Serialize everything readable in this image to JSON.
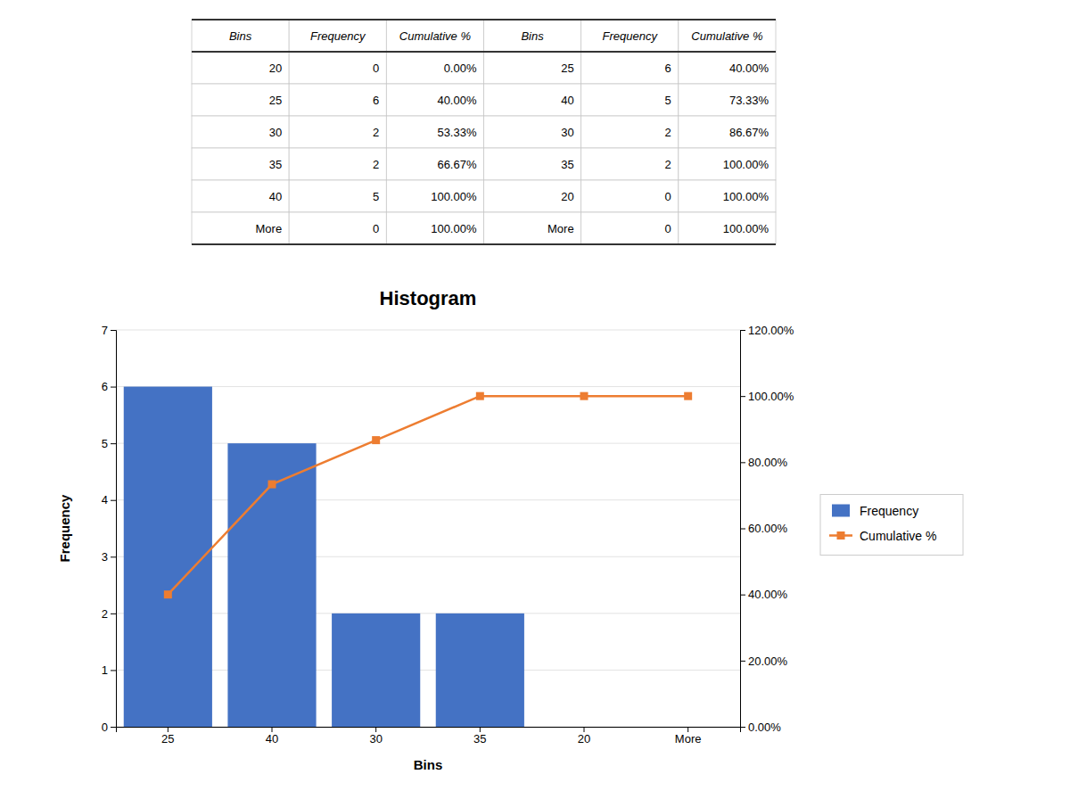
{
  "chart_data": [
    {
      "type": "table",
      "columns": [
        "Bins",
        "Frequency",
        "Cumulative %",
        "Bins",
        "Frequency",
        "Cumulative %"
      ],
      "rows": [
        [
          "20",
          "0",
          "0.00%",
          "25",
          "6",
          "40.00%"
        ],
        [
          "25",
          "6",
          "40.00%",
          "40",
          "5",
          "73.33%"
        ],
        [
          "30",
          "2",
          "53.33%",
          "30",
          "2",
          "86.67%"
        ],
        [
          "35",
          "2",
          "66.67%",
          "35",
          "2",
          "100.00%"
        ],
        [
          "40",
          "5",
          "100.00%",
          "20",
          "0",
          "100.00%"
        ],
        [
          "More",
          "0",
          "100.00%",
          "More",
          "0",
          "100.00%"
        ]
      ]
    },
    {
      "type": "bar",
      "title": "Histogram",
      "xlabel": "Bins",
      "ylabel": "Frequency",
      "categories": [
        "25",
        "40",
        "30",
        "35",
        "20",
        "More"
      ],
      "ylim": [
        0,
        7
      ],
      "yticks": [
        0,
        1,
        2,
        3,
        4,
        5,
        6,
        7
      ],
      "y2lim": [
        0,
        120.0
      ],
      "y2ticks": [
        {
          "value": 0.0,
          "label": "0.00%"
        },
        {
          "value": 20.0,
          "label": "20.00%"
        },
        {
          "value": 40.0,
          "label": "40.00%"
        },
        {
          "value": 60.0,
          "label": "60.00%"
        },
        {
          "value": 80.0,
          "label": "80.00%"
        },
        {
          "value": 100.0,
          "label": "100.00%"
        },
        {
          "value": 120.0,
          "label": "120.00%"
        }
      ],
      "grid": true,
      "legend": "right",
      "series": [
        {
          "name": "Frequency",
          "type": "bar",
          "color": "#4472C4",
          "values": [
            6,
            5,
            2,
            2,
            0,
            0
          ]
        },
        {
          "name": "Cumulative %",
          "type": "line",
          "axis": "y2",
          "color": "#ED7D31",
          "marker": "square",
          "values": [
            40.0,
            73.33,
            86.67,
            100.0,
            100.0,
            100.0
          ]
        }
      ]
    }
  ]
}
